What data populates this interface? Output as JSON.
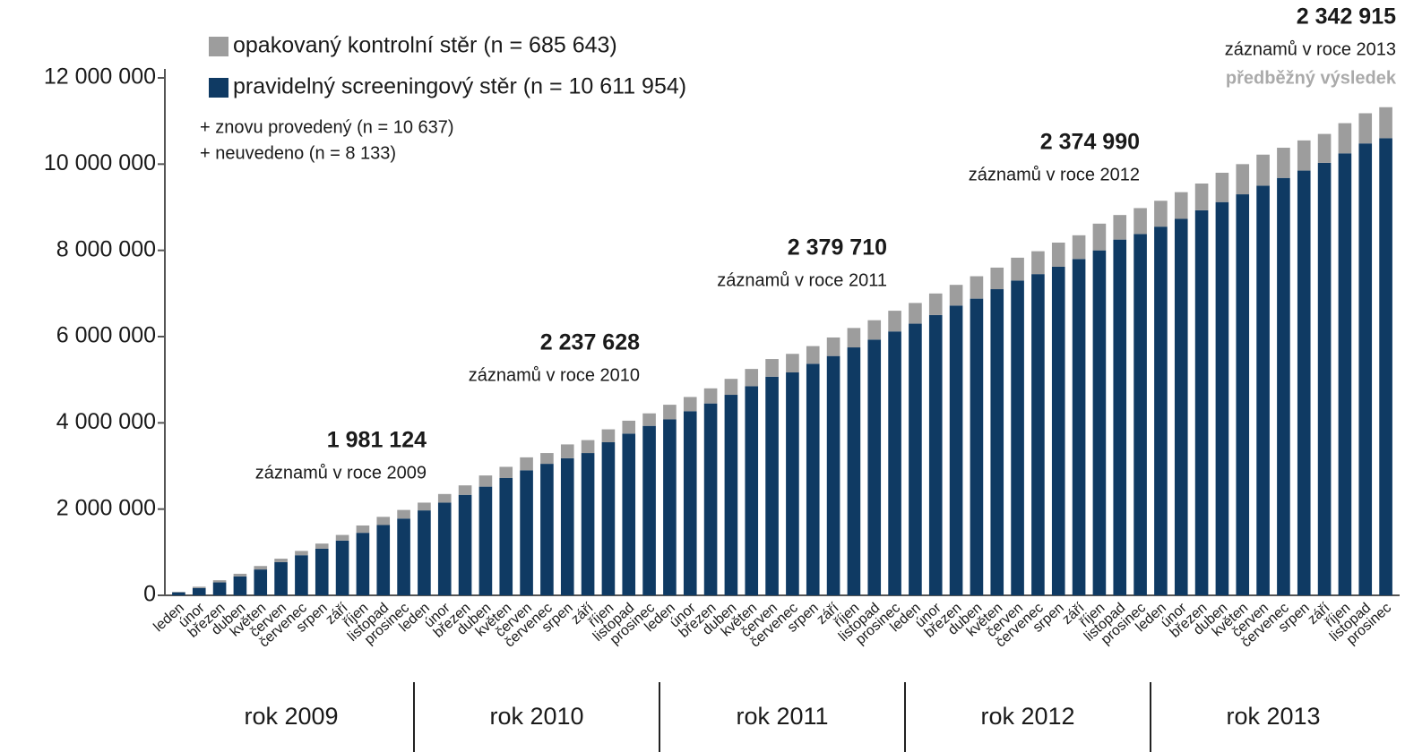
{
  "chart_data": {
    "type": "stacked-bar",
    "categories": [
      "leden",
      "únor",
      "březen",
      "duben",
      "květen",
      "červen",
      "červenec",
      "srpen",
      "září",
      "říjen",
      "listopad",
      "prosinec",
      "leden",
      "únor",
      "březen",
      "duben",
      "květen",
      "červen",
      "červenec",
      "srpen",
      "září",
      "říjen",
      "listopad",
      "prosinec",
      "leden",
      "únor",
      "březen",
      "duben",
      "květen",
      "červen",
      "červenec",
      "srpen",
      "září",
      "říjen",
      "listopad",
      "prosinec",
      "leden",
      "únor",
      "březen",
      "duben",
      "květen",
      "červen",
      "červenec",
      "srpen",
      "září",
      "říjen",
      "listopad",
      "prosinec",
      "leden",
      "únor",
      "březen",
      "duben",
      "květen",
      "červen",
      "červenec",
      "srpen",
      "září",
      "říjen",
      "listopad",
      "prosinec"
    ],
    "groups": [
      "rok 2009",
      "rok 2010",
      "rok 2011",
      "rok 2012",
      "rok 2013"
    ],
    "series": [
      {
        "name": "pravidelný screeningový stěr (n = 10 611 954)",
        "color": "#0f3a63",
        "values": [
          70000,
          170000,
          300000,
          440000,
          600000,
          770000,
          930000,
          1080000,
          1270000,
          1450000,
          1630000,
          1780000,
          1970000,
          2150000,
          2330000,
          2520000,
          2720000,
          2900000,
          3050000,
          3180000,
          3300000,
          3550000,
          3750000,
          3930000,
          4080000,
          4270000,
          4450000,
          4650000,
          4850000,
          5070000,
          5170000,
          5370000,
          5550000,
          5750000,
          5930000,
          6120000,
          6300000,
          6500000,
          6720000,
          6880000,
          7100000,
          7300000,
          7450000,
          7620000,
          7800000,
          8000000,
          8250000,
          8380000,
          8550000,
          8730000,
          8930000,
          9120000,
          9300000,
          9500000,
          9680000,
          9850000,
          10030000,
          10250000,
          10480000,
          10600000
        ]
      },
      {
        "name": "opakovaný kontrolní stěr (n = 685 643)",
        "color": "#9d9d9d",
        "values": [
          10000,
          30000,
          50000,
          60000,
          80000,
          80000,
          100000,
          120000,
          130000,
          170000,
          190000,
          200000,
          180000,
          200000,
          220000,
          260000,
          260000,
          300000,
          250000,
          320000,
          300000,
          300000,
          300000,
          290000,
          340000,
          330000,
          350000,
          370000,
          400000,
          410000,
          430000,
          410000,
          430000,
          450000,
          450000,
          480000,
          480000,
          500000,
          480000,
          520000,
          500000,
          530000,
          530000,
          560000,
          550000,
          620000,
          570000,
          600000,
          600000,
          620000,
          620000,
          680000,
          700000,
          720000,
          700000,
          700000,
          670000,
          700000,
          700000,
          720000
        ]
      }
    ],
    "notes": [
      "+ znovu provedený (n = 10 637)",
      "+ neuvedeno (n = 8 133)"
    ],
    "annotations": [
      {
        "total": "1 981 124",
        "text": "záznamů v roce 2009"
      },
      {
        "total": "2 237 628",
        "text": "záznamů v roce 2010"
      },
      {
        "total": "2 379 710",
        "text": "záznamů v roce 2011"
      },
      {
        "total": "2 374 990",
        "text": "záznamů v roce 2012"
      },
      {
        "total": "2 342 915",
        "text": "záznamů v roce 2013",
        "note": "předběžný výsledek"
      }
    ],
    "ylim": [
      0,
      12000000
    ],
    "yticks": [
      0,
      {
        "value": 2000000,
        "label": "2 000 000"
      },
      {
        "value": 4000000,
        "label": "4 000 000"
      },
      {
        "value": 6000000,
        "label": "6 000 000"
      },
      {
        "value": 8000000,
        "label": "8 000 000"
      },
      {
        "value": 10000000,
        "label": "10 000 000"
      },
      {
        "value": 12000000,
        "label": "12 000 000"
      }
    ],
    "grid": false
  }
}
